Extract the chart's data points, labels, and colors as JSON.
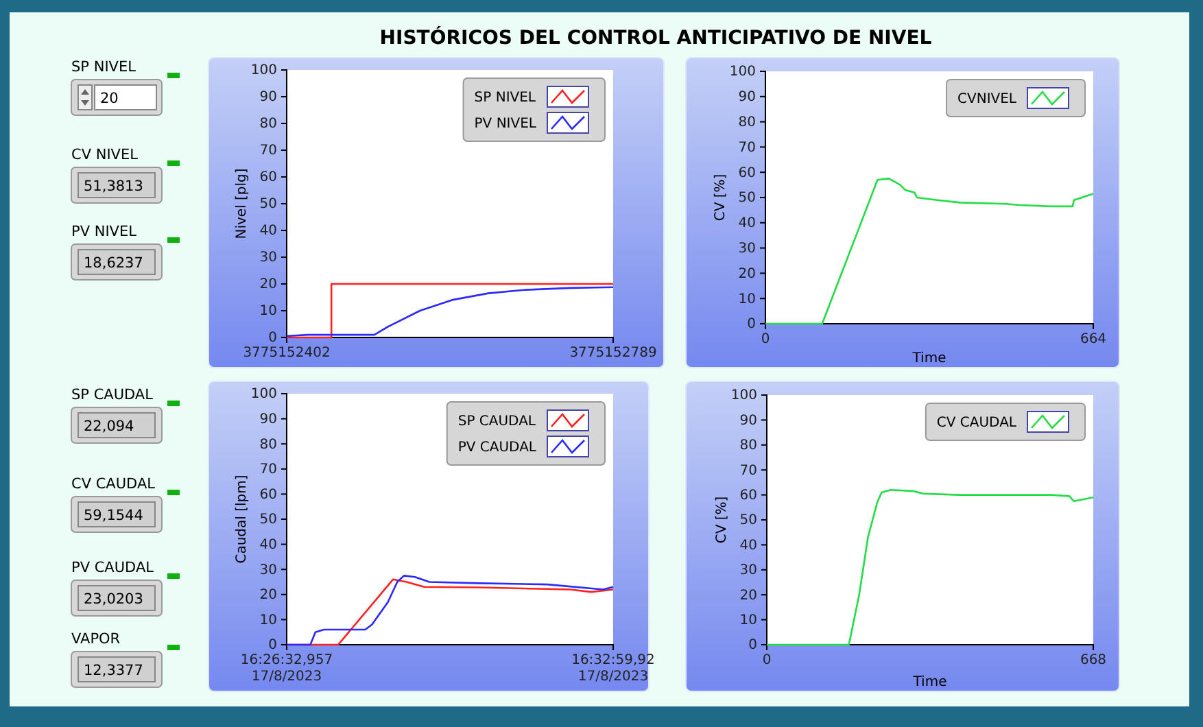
{
  "chart_data": [
    {
      "type": "other",
      "title": "HISTÓRICOS DEL CONTROL ANTICIPATIVO DE NIVEL",
      "annotations": [
        "SP NIVEL",
        "20",
        "CV NIVEL",
        "51,3813",
        "PV NIVEL",
        "18,6237",
        "SP CAUDAL",
        "22,094",
        "CV CAUDAL",
        "59,1544",
        "PV CAUDAL",
        "23,0203",
        "VAPOR",
        "12,3377"
      ]
    },
    {
      "type": "line",
      "ylabel": "Nivel [plg]",
      "xlim": [
        3775152402,
        3775152789
      ],
      "xticks": [
        3775152402,
        3775152789
      ],
      "ylim": [
        0,
        100
      ],
      "yticks": [
        0,
        10,
        20,
        30,
        40,
        50,
        60,
        70,
        80,
        90,
        100
      ],
      "legend": "top right",
      "series": [
        {
          "name": "SP NIVEL",
          "color": "#ff2020",
          "x": [
            3775152402,
            3775152455,
            3775152455,
            3775152789
          ],
          "values": [
            0,
            0,
            20,
            20
          ]
        },
        {
          "name": "PV NIVEL",
          "color": "#2a2aff",
          "x": [
            3775152402,
            3775152427,
            3775152506,
            3775152522,
            3775152560,
            3775152598,
            3775152641,
            3775152685,
            3775152738,
            3775152789
          ],
          "values": [
            0.5,
            1,
            1,
            4,
            10,
            14,
            16.5,
            17.8,
            18.5,
            18.8
          ]
        }
      ]
    },
    {
      "type": "line",
      "xlabel": "Time",
      "ylabel": "CV [%]",
      "xlim": [
        0,
        664
      ],
      "xticks": [
        0,
        664
      ],
      "ylim": [
        0,
        100
      ],
      "yticks": [
        0,
        10,
        20,
        30,
        40,
        50,
        60,
        70,
        80,
        90,
        100
      ],
      "legend": "top right",
      "series": [
        {
          "name": "CVNIVEL",
          "color": "#22dd44",
          "x": [
            0,
            115,
            227,
            250,
            273,
            283,
            302,
            307,
            348,
            394,
            487,
            515,
            580,
            622,
            625,
            664
          ],
          "values": [
            0,
            0,
            57,
            57.5,
            55,
            53,
            52,
            50,
            49,
            48,
            47.5,
            47,
            46.5,
            46.5,
            49,
            51.5
          ]
        }
      ]
    },
    {
      "type": "line",
      "ylabel": "Caudal [lpm]",
      "xlim": [
        "2023-08-17T16:26:32.957",
        "2023-08-17T16:32:59.92"
      ],
      "xticks": [
        {
          "value": "2023-08-17T16:26:32.957",
          "label": "16:26:32,957\n17/8/2023"
        },
        {
          "value": "2023-08-17T16:32:59.92",
          "label": "16:32:59,92\n17/8/2023"
        }
      ],
      "ylim": [
        0,
        100
      ],
      "yticks": [
        0,
        10,
        20,
        30,
        40,
        50,
        60,
        70,
        80,
        90,
        100
      ],
      "legend": "top right",
      "series": [
        {
          "name": "SP CAUDAL",
          "color": "#ff2020",
          "x": [
            "2023-08-17T16:26:32.957",
            "2023-08-17T16:27:34",
            "2023-08-17T16:28:39",
            "2023-08-17T16:28:55",
            "2023-08-17T16:29:16",
            "2023-08-17T16:30:21",
            "2023-08-17T16:32:09",
            "2023-08-17T16:32:34",
            "2023-08-17T16:32:59.92"
          ],
          "values": [
            0,
            0,
            26,
            25,
            23,
            22.8,
            22,
            21,
            22
          ]
        },
        {
          "name": "PV CAUDAL",
          "color": "#2a2aff",
          "x": [
            "2023-08-17T16:26:32.957",
            "2023-08-17T16:27:01",
            "2023-08-17T16:27:07",
            "2023-08-17T16:27:17",
            "2023-08-17T16:28:06",
            "2023-08-17T16:28:14",
            "2023-08-17T16:28:33",
            "2023-08-17T16:28:44",
            "2023-08-17T16:28:52",
            "2023-08-17T16:29:05",
            "2023-08-17T16:29:22",
            "2023-08-17T16:30:21",
            "2023-08-17T16:31:42",
            "2023-08-17T16:32:48",
            "2023-08-17T16:32:59.92"
          ],
          "values": [
            0,
            0,
            5,
            6,
            6,
            8,
            17,
            25,
            27.5,
            27,
            25,
            24.5,
            24,
            22,
            23
          ]
        }
      ]
    },
    {
      "type": "line",
      "xlabel": "Time",
      "ylabel": "CV [%]",
      "xlim": [
        0,
        668
      ],
      "xticks": [
        0,
        668
      ],
      "ylim": [
        0,
        100
      ],
      "yticks": [
        0,
        10,
        20,
        30,
        40,
        50,
        60,
        70,
        80,
        90,
        100
      ],
      "legend": "top right",
      "series": [
        {
          "name": "CV CAUDAL",
          "color": "#22dd44",
          "x": [
            0,
            168,
            189,
            207,
            226,
            235,
            254,
            301,
            320,
            394,
            581,
            619,
            628,
            668
          ],
          "values": [
            0,
            0,
            20,
            43,
            57,
            61,
            62,
            61.5,
            60.5,
            60,
            60,
            59.5,
            57.5,
            59
          ]
        }
      ]
    }
  ]
}
